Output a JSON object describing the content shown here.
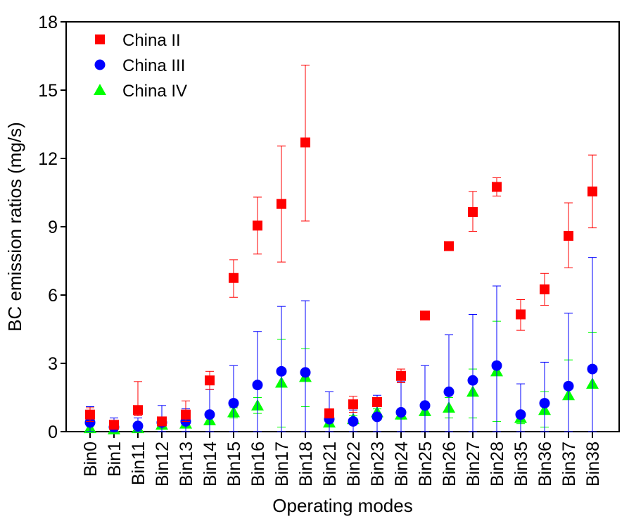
{
  "chart_data": {
    "type": "scatter",
    "xlabel": "Operating modes",
    "ylabel": "BC emission ratios (mg/s)",
    "ylim": [
      0,
      18
    ],
    "yticks": [
      0,
      3,
      6,
      9,
      12,
      15,
      18
    ],
    "grid": false,
    "legend_position": "top-left",
    "categories": [
      "Bin0",
      "Bin1",
      "Bin11",
      "Bin12",
      "Bin13",
      "Bin14",
      "Bin15",
      "Bin16",
      "Bin17",
      "Bin18",
      "Bin21",
      "Bin22",
      "Bin23",
      "Bin24",
      "Bin25",
      "Bin26",
      "Bin27",
      "Bin28",
      "Bin35",
      "Bin36",
      "Bin37",
      "Bin38"
    ],
    "series": [
      {
        "name": "China II",
        "marker": "square",
        "color": "#ff0000",
        "values": [
          0.75,
          0.3,
          0.95,
          0.45,
          0.75,
          2.25,
          6.75,
          9.05,
          10.0,
          12.7,
          0.8,
          1.2,
          1.3,
          2.45,
          5.1,
          8.15,
          9.65,
          10.75,
          5.15,
          6.25,
          8.6,
          10.55
        ],
        "error_low": [
          0.45,
          0.2,
          0.7,
          0.35,
          0.45,
          1.85,
          5.9,
          7.8,
          7.45,
          9.25,
          0.6,
          0.85,
          1.1,
          2.15,
          5.1,
          8.15,
          8.8,
          10.35,
          4.45,
          5.55,
          7.2,
          8.95
        ],
        "error_high": [
          1.05,
          0.4,
          2.2,
          0.6,
          1.35,
          2.65,
          7.55,
          10.3,
          12.55,
          16.1,
          1.0,
          1.55,
          1.5,
          2.75,
          5.1,
          8.15,
          10.55,
          11.15,
          5.8,
          6.95,
          10.05,
          12.15
        ]
      },
      {
        "name": "China III",
        "marker": "circle",
        "color": "#0000ff",
        "values": [
          0.4,
          0.2,
          0.25,
          0.4,
          0.45,
          0.75,
          1.25,
          2.05,
          2.65,
          2.6,
          0.55,
          0.45,
          0.65,
          0.85,
          1.15,
          1.75,
          2.25,
          2.9,
          0.75,
          1.25,
          2.0,
          2.75
        ],
        "error_low": [
          0.0,
          0.0,
          0.0,
          0.0,
          0.0,
          0.0,
          0.0,
          0.0,
          0.0,
          0.0,
          0.0,
          0.0,
          0.0,
          0.0,
          0.0,
          0.0,
          0.0,
          0.0,
          0.0,
          0.0,
          0.0,
          0.0
        ],
        "error_high": [
          1.1,
          0.6,
          0.6,
          1.15,
          1.0,
          1.85,
          2.9,
          4.4,
          5.5,
          5.75,
          1.75,
          0.95,
          1.6,
          2.2,
          2.9,
          4.25,
          5.15,
          6.4,
          2.1,
          3.05,
          5.2,
          7.65
        ]
      },
      {
        "name": "China IV",
        "marker": "triangle",
        "color": "#00ff00",
        "values": [
          0.15,
          0.1,
          0.15,
          0.3,
          0.35,
          0.5,
          0.85,
          1.15,
          2.15,
          2.4,
          0.4,
          0.55,
          0.85,
          0.75,
          0.9,
          1.05,
          1.75,
          2.65,
          0.6,
          0.95,
          1.6,
          2.1
        ],
        "error_low": [
          0.1,
          0.05,
          0.1,
          0.2,
          0.2,
          0.3,
          0.6,
          0.8,
          0.2,
          1.1,
          0.25,
          0.4,
          0.65,
          0.55,
          0.7,
          0.6,
          0.6,
          0.45,
          0.35,
          0.2,
          0.0,
          0.0
        ],
        "error_high": [
          0.25,
          0.15,
          0.2,
          0.4,
          0.55,
          0.7,
          1.05,
          1.5,
          4.05,
          3.65,
          0.55,
          0.7,
          1.0,
          0.95,
          1.1,
          1.5,
          2.75,
          4.85,
          0.85,
          1.75,
          3.15,
          4.35
        ]
      }
    ]
  }
}
